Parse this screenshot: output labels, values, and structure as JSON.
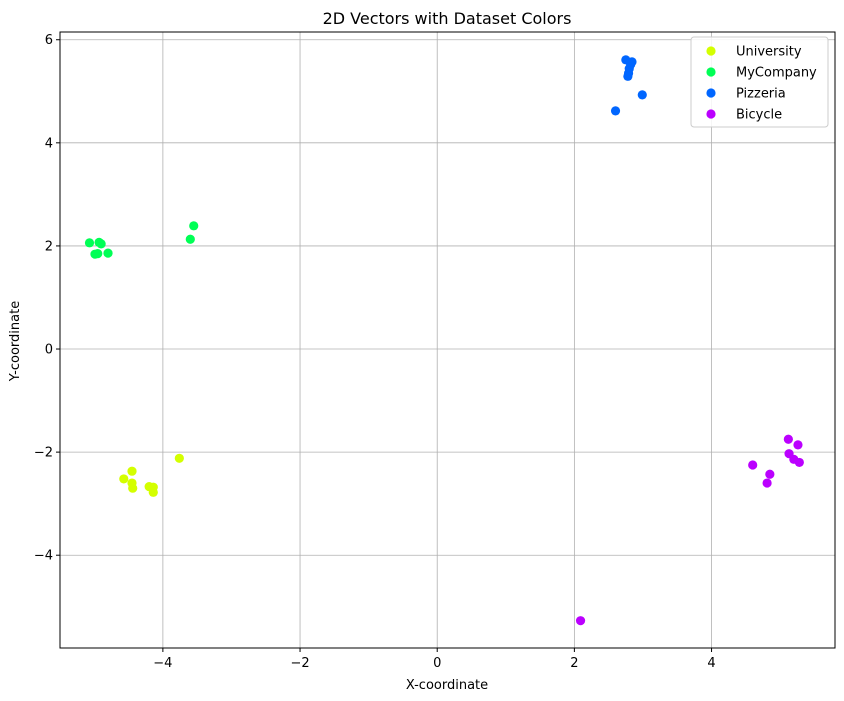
{
  "chart_data": {
    "type": "scatter",
    "title": "2D Vectors with Dataset Colors",
    "xlabel": "X-coordinate",
    "ylabel": "Y-coordinate",
    "xlim": [
      -5.5,
      5.8
    ],
    "ylim": [
      -5.8,
      6.15
    ],
    "xticks": [
      -4,
      -2,
      0,
      2,
      4
    ],
    "yticks": [
      -4,
      -2,
      0,
      2,
      4,
      6
    ],
    "xtick_labels": [
      "−4",
      "−2",
      "0",
      "2",
      "4"
    ],
    "ytick_labels": [
      "−4",
      "−2",
      "0",
      "2",
      "4",
      "6"
    ],
    "grid": true,
    "legend_position": "top-right",
    "series": [
      {
        "name": "University",
        "color": "#d4ff00",
        "points": [
          [
            -4.57,
            -2.52
          ],
          [
            -4.45,
            -2.37
          ],
          [
            -4.45,
            -2.6
          ],
          [
            -4.44,
            -2.7
          ],
          [
            -4.2,
            -2.67
          ],
          [
            -4.14,
            -2.68
          ],
          [
            -4.14,
            -2.78
          ],
          [
            -3.76,
            -2.12
          ]
        ]
      },
      {
        "name": "MyCompany",
        "color": "#00ff55",
        "points": [
          [
            -5.07,
            2.06
          ],
          [
            -4.99,
            1.84
          ],
          [
            -4.95,
            1.85
          ],
          [
            -4.93,
            2.07
          ],
          [
            -4.9,
            2.04
          ],
          [
            -4.8,
            1.86
          ],
          [
            -3.6,
            2.13
          ],
          [
            -3.55,
            2.39
          ]
        ]
      },
      {
        "name": "Pizzeria",
        "color": "#0066ff",
        "points": [
          [
            2.6,
            4.62
          ],
          [
            2.75,
            5.61
          ],
          [
            2.78,
            5.29
          ],
          [
            2.79,
            5.35
          ],
          [
            2.8,
            5.44
          ],
          [
            2.82,
            5.52
          ],
          [
            2.84,
            5.57
          ],
          [
            2.99,
            4.93
          ]
        ]
      },
      {
        "name": "Bicycle",
        "color": "#bb00ff",
        "points": [
          [
            2.09,
            -5.27
          ],
          [
            4.6,
            -2.25
          ],
          [
            4.81,
            -2.6
          ],
          [
            4.85,
            -2.43
          ],
          [
            5.12,
            -1.75
          ],
          [
            5.13,
            -2.03
          ],
          [
            5.2,
            -2.14
          ],
          [
            5.26,
            -1.86
          ],
          [
            5.28,
            -2.2
          ]
        ]
      }
    ]
  }
}
